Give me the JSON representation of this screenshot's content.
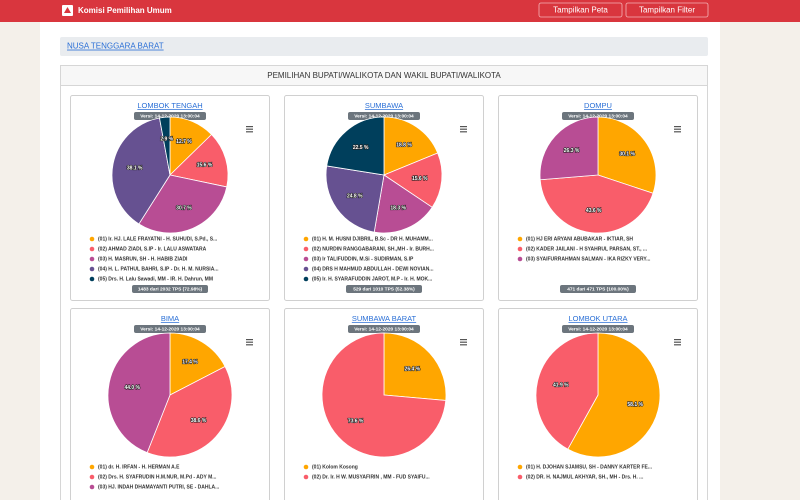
{
  "header": {
    "brand": "Komisi Pemilihan Umum",
    "buttons": [
      "Tampilkan Peta",
      "Tampilkan Filter"
    ]
  },
  "breadcrumb": "NUSA TENGGARA BARAT",
  "panel_title": "PEMILIHAN BUPATI/WALIKOTA DAN WAKIL BUPATI/WALIKOTA",
  "chart_data": [
    {
      "type": "pie",
      "title": "LOMBOK TENGAH",
      "version": "Versi: 14-12-2020 13:00:04",
      "categories": [
        "(01) Ir. HJ. LALE FRAYATNI - H. SUHUDI, S.Pd., S...",
        "(02) AHMAD ZIADI, S.IP - Ir. LALU ASWATARA",
        "(03) H. MASRUN, SH - H. HABIB ZIADI",
        "(04) H. L. PATHUL BAHRI, S.IP - Dr. H. M. NURSIA...",
        "(05) Drs. H. Lalu Sawadi, MM - IR. H. Dahrun, MM"
      ],
      "values": [
        12.7,
        15.6,
        30.7,
        38.1,
        2.9
      ],
      "value_labels": [
        "12.7 %",
        "15.6 %",
        "30.7 %",
        "38.1 %",
        "2.9 %"
      ],
      "colors": [
        "#ffa600",
        "#f95d6a",
        "#b84d94",
        "#665191",
        "#003f5c"
      ],
      "footer": "1483 dari 2032 TPS (72.98%)"
    },
    {
      "type": "pie",
      "title": "SUMBAWA",
      "version": "Versi: 14-12-2020 13:00:04",
      "categories": [
        "(01) H. M. HUSNI DJIBRIL, B.Sc - DR H. MUHAMM...",
        "(02) NURDIN RANGGABARANI, SH.,MH - Ir. BURH...",
        "(03) Ir TALIFUDDIN, M.Si - SUDIRMAN, S.IP",
        "(04) DRS H MAHMUD ABDULLAH - DEWI NOVIAN...",
        "(05) Ir. H. SYARAFUDDIN JAROT, M.P - Ir. H. MOK..."
      ],
      "values": [
        18.8,
        15.6,
        18.3,
        24.8,
        22.5
      ],
      "value_labels": [
        "18.8 %",
        "15.6 %",
        "18.3 %",
        "24.8 %",
        "22.5 %"
      ],
      "colors": [
        "#ffa600",
        "#f95d6a",
        "#b84d94",
        "#665191",
        "#003f5c"
      ],
      "footer": "529 dari 1010 TPS (52.38%)"
    },
    {
      "type": "pie",
      "title": "DOMPU",
      "version": "Versi: 14-12-2020 13:00:04",
      "categories": [
        "(01) HJ ERI ARYANI ABUBAKAR - IKTIAR, SH",
        "(02) KADER JAILANI - H SYAHRUL PARSAN, ST., ...",
        "(03) SYAIFURRAHMAN SALMAN - IKA RIZKY VERY..."
      ],
      "values": [
        30.1,
        43.6,
        26.3
      ],
      "value_labels": [
        "30.1 %",
        "43.6 %",
        "26.3 %"
      ],
      "colors": [
        "#ffa600",
        "#f95d6a",
        "#b84d94"
      ],
      "footer": "471 dari 471 TPS (100.00%)"
    },
    {
      "type": "pie",
      "title": "BIMA",
      "version": "Versi: 14-12-2020 13:00:04",
      "categories": [
        "(01) dr. H. IRFAN - H. HERMAN A.E",
        "(02) Drs. H. SYAFRUDIN H.M.NUR, M.Pd - ADY M...",
        "(03) HJ. INDAH DHAMAYANTI PUTRI, SE - DAHLA..."
      ],
      "values": [
        17.4,
        38.6,
        44.0
      ],
      "value_labels": [
        "17.4 %",
        "38.6 %",
        "44.0 %"
      ],
      "colors": [
        "#ffa600",
        "#f95d6a",
        "#b84d94"
      ]
    },
    {
      "type": "pie",
      "title": "SUMBAWA BARAT",
      "version": "Versi: 14-12-2020 13:00:04",
      "categories": [
        "(01) Kolom Kosong",
        "(02) Dr. Ir. H W. MUSYAFIRIN , MM - FUD SYAIFU..."
      ],
      "values": [
        26.4,
        73.6
      ],
      "value_labels": [
        "26.4 %",
        "73.6 %"
      ],
      "colors": [
        "#ffa600",
        "#f95d6a"
      ]
    },
    {
      "type": "pie",
      "title": "LOMBOK UTARA",
      "version": "Versi: 14-12-2020 13:00:04",
      "categories": [
        "(01) H. DJOHAN SJAMSU, SH - DANNY KARTER FE...",
        "(02) DR. H. NAJMUL AKHYAR, SH., MH - Drs. H. ..."
      ],
      "values": [
        58.1,
        41.9
      ],
      "value_labels": [
        "58.1 %",
        "41.9 %"
      ],
      "colors": [
        "#ffa600",
        "#f95d6a"
      ]
    }
  ]
}
